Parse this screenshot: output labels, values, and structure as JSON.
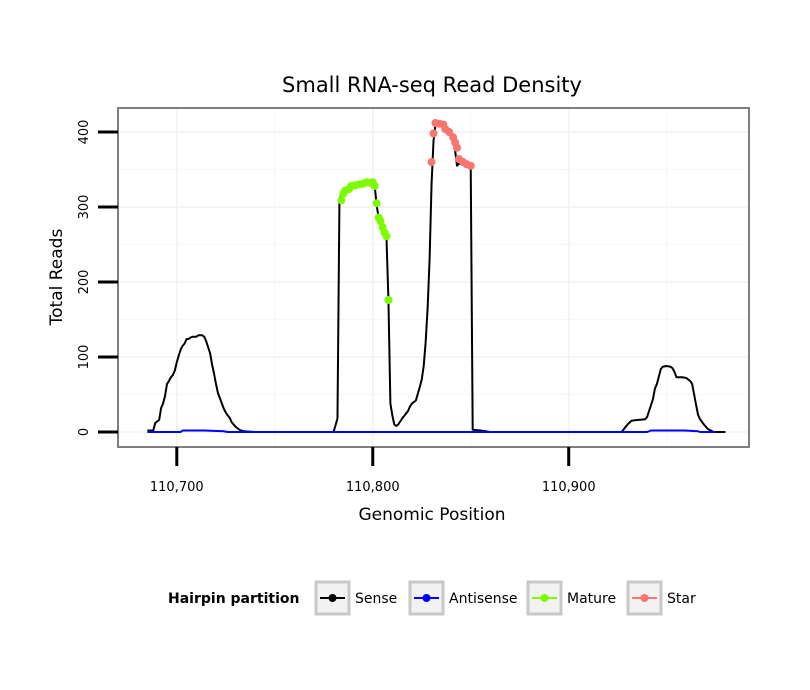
{
  "chart_data": {
    "type": "line",
    "title": "Small RNA-seq Read Density",
    "xlabel": "Genomic Position",
    "ylabel": "Total Reads",
    "xlim": [
      110670,
      110992
    ],
    "ylim": [
      -20,
      432
    ],
    "x_ticks": [
      110700,
      110800,
      110900
    ],
    "x_tick_labels": [
      "110,700",
      "110,800",
      "110,900"
    ],
    "y_ticks": [
      0,
      100,
      200,
      300,
      400
    ],
    "y_tick_labels": [
      "0",
      "100",
      "200",
      "300",
      "400"
    ],
    "grid": true,
    "legend": {
      "title": "Hairpin partition",
      "position": "bottom",
      "entries": [
        {
          "name": "Sense",
          "color": "#000000"
        },
        {
          "name": "Antisense",
          "color": "#0000ff"
        },
        {
          "name": "Mature",
          "color": "#7cfc00"
        },
        {
          "name": "Star",
          "color": "#f8766d"
        }
      ]
    },
    "series": [
      {
        "name": "Sense",
        "color": "#000000",
        "kind": "line",
        "points": [
          [
            110685,
            2
          ],
          [
            110688,
            2
          ],
          [
            110689,
            12
          ],
          [
            110690,
            14
          ],
          [
            110691,
            16
          ],
          [
            110692,
            32
          ],
          [
            110693,
            38
          ],
          [
            110694,
            48
          ],
          [
            110695,
            64
          ],
          [
            110696,
            68
          ],
          [
            110697,
            73
          ],
          [
            110698,
            76
          ],
          [
            110699,
            82
          ],
          [
            110700,
            93
          ],
          [
            110701,
            102
          ],
          [
            110702,
            110
          ],
          [
            110703,
            115
          ],
          [
            110704,
            118
          ],
          [
            110705,
            124
          ],
          [
            110706,
            124
          ],
          [
            110707,
            126
          ],
          [
            110708,
            127
          ],
          [
            110709,
            127
          ],
          [
            110710,
            127
          ],
          [
            110711,
            129
          ],
          [
            110712,
            129
          ],
          [
            110713,
            129
          ],
          [
            110714,
            127
          ],
          [
            110715,
            121
          ],
          [
            110716,
            113
          ],
          [
            110717,
            105
          ],
          [
            110718,
            90
          ],
          [
            110719,
            78
          ],
          [
            110720,
            64
          ],
          [
            110721,
            52
          ],
          [
            110722,
            45
          ],
          [
            110723,
            38
          ],
          [
            110724,
            31
          ],
          [
            110725,
            26
          ],
          [
            110726,
            22
          ],
          [
            110727,
            19
          ],
          [
            110728,
            13
          ],
          [
            110729,
            10
          ],
          [
            110730,
            7
          ],
          [
            110731,
            5
          ],
          [
            110732,
            3
          ],
          [
            110734,
            1
          ],
          [
            110740,
            0
          ],
          [
            110780,
            0
          ],
          [
            110782,
            18
          ],
          [
            110783,
            308
          ],
          [
            110784,
            318
          ],
          [
            110786,
            324
          ],
          [
            110788,
            329
          ],
          [
            110790,
            330
          ],
          [
            110795,
            333
          ],
          [
            110798,
            334
          ],
          [
            110801,
            328
          ],
          [
            110802,
            302
          ],
          [
            110803,
            286
          ],
          [
            110805,
            275
          ],
          [
            110806,
            267
          ],
          [
            110807,
            260
          ],
          [
            110808,
            176
          ],
          [
            110809,
            38
          ],
          [
            110810,
            22
          ],
          [
            110811,
            10
          ],
          [
            110812,
            8
          ],
          [
            110813,
            10
          ],
          [
            110815,
            18
          ],
          [
            110818,
            28
          ],
          [
            110819,
            34
          ],
          [
            110820,
            38
          ],
          [
            110822,
            42
          ],
          [
            110824,
            60
          ],
          [
            110825,
            70
          ],
          [
            110826,
            88
          ],
          [
            110827,
            120
          ],
          [
            110828,
            165
          ],
          [
            110829,
            230
          ],
          [
            110830,
            330
          ],
          [
            110831,
            388
          ],
          [
            110832,
            410
          ],
          [
            110834,
            412
          ],
          [
            110836,
            410
          ],
          [
            110837,
            404
          ],
          [
            110839,
            400
          ],
          [
            110841,
            393
          ],
          [
            110842,
            376
          ],
          [
            110843,
            355
          ],
          [
            110844,
            358
          ],
          [
            110847,
            355
          ],
          [
            110848,
            354
          ],
          [
            110849,
            352
          ],
          [
            110850,
            352
          ],
          [
            110851,
            3
          ],
          [
            110855,
            2
          ],
          [
            110860,
            0
          ],
          [
            110920,
            0
          ],
          [
            110927,
            0
          ],
          [
            110930,
            10
          ],
          [
            110932,
            15
          ],
          [
            110935,
            16
          ],
          [
            110939,
            17
          ],
          [
            110940,
            20
          ],
          [
            110941,
            28
          ],
          [
            110943,
            44
          ],
          [
            110944,
            58
          ],
          [
            110945,
            64
          ],
          [
            110946,
            74
          ],
          [
            110947,
            84
          ],
          [
            110948,
            87
          ],
          [
            110950,
            88
          ],
          [
            110952,
            87
          ],
          [
            110953,
            85
          ],
          [
            110954,
            80
          ],
          [
            110955,
            73
          ],
          [
            110958,
            73
          ],
          [
            110960,
            72
          ],
          [
            110962,
            68
          ],
          [
            110963,
            64
          ],
          [
            110964,
            50
          ],
          [
            110965,
            36
          ],
          [
            110966,
            23
          ],
          [
            110967,
            17
          ],
          [
            110969,
            10
          ],
          [
            110971,
            4
          ],
          [
            110974,
            0
          ],
          [
            110980,
            0
          ]
        ]
      },
      {
        "name": "Antisense",
        "color": "#0000ff",
        "kind": "line",
        "points": [
          [
            110685,
            0
          ],
          [
            110702,
            0
          ],
          [
            110703,
            2
          ],
          [
            110714,
            2
          ],
          [
            110724,
            1
          ],
          [
            110726,
            0
          ],
          [
            110940,
            0
          ],
          [
            110942,
            2
          ],
          [
            110959,
            2
          ],
          [
            110966,
            1
          ],
          [
            110967,
            0
          ],
          [
            110975,
            0
          ]
        ]
      },
      {
        "name": "Mature",
        "color": "#7cfc00",
        "kind": "points",
        "points": [
          [
            110784,
            309
          ],
          [
            110785,
            318
          ],
          [
            110786,
            322
          ],
          [
            110788,
            324
          ],
          [
            110789,
            328
          ],
          [
            110791,
            329
          ],
          [
            110793,
            330
          ],
          [
            110795,
            331
          ],
          [
            110797,
            333
          ],
          [
            110799,
            332
          ],
          [
            110800,
            333
          ],
          [
            110801,
            328
          ],
          [
            110802,
            305
          ],
          [
            110803,
            286
          ],
          [
            110804,
            281
          ],
          [
            110805,
            273
          ],
          [
            110806,
            266
          ],
          [
            110807,
            261
          ],
          [
            110808,
            176
          ]
        ]
      },
      {
        "name": "Star",
        "color": "#f8766d",
        "kind": "points",
        "points": [
          [
            110830,
            360
          ],
          [
            110831,
            398
          ],
          [
            110832,
            412
          ],
          [
            110834,
            411
          ],
          [
            110836,
            410
          ],
          [
            110837,
            404
          ],
          [
            110839,
            400
          ],
          [
            110841,
            393
          ],
          [
            110842,
            386
          ],
          [
            110843,
            379
          ],
          [
            110844,
            364
          ],
          [
            110846,
            360
          ],
          [
            110848,
            357
          ],
          [
            110850,
            355
          ]
        ]
      }
    ]
  }
}
